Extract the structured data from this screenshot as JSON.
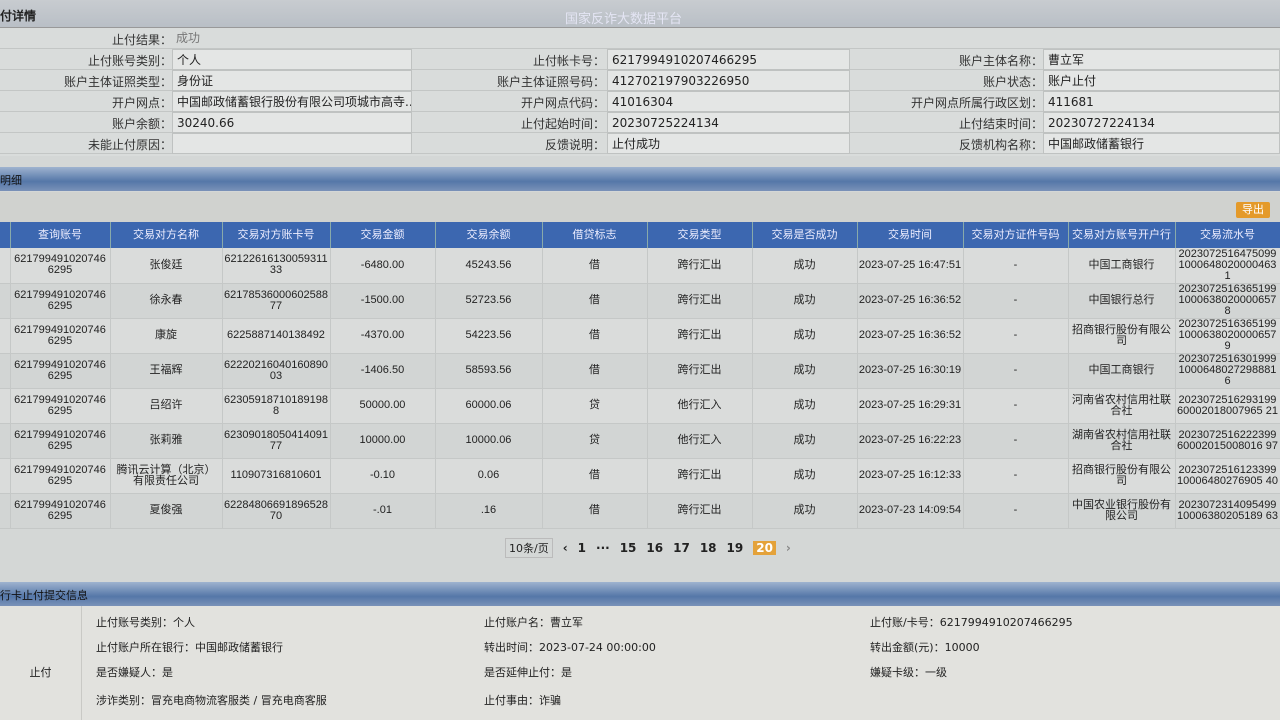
{
  "header": {
    "title": "付详情",
    "watermark": "国家反诈大数据平台"
  },
  "detail": {
    "result_label": "止付结果：",
    "result_value": "成功",
    "rows": [
      {
        "l1": "止付账号类别：",
        "v1": "个人",
        "l2": "止付帐卡号：",
        "v2": "6217994910207466295",
        "l3": "账户主体名称：",
        "v3": "曹立军"
      },
      {
        "l1": "账户主体证照类型：",
        "v1": "身份证",
        "l2": "账户主体证照号码：",
        "v2": "412702197903226950",
        "l3": "账户状态：",
        "v3": "账户止付"
      },
      {
        "l1": "开户网点：",
        "v1": "中国邮政储蓄银行股份有限公司项城市高寺...",
        "l2": "开户网点代码：",
        "v2": "41016304",
        "l3": "开户网点所属行政区划：",
        "v3": "411681"
      },
      {
        "l1": "账户余额：",
        "v1": "30240.66",
        "l2": "止付起始时间：",
        "v2": "20230725224134",
        "l3": "止付结束时间：",
        "v3": "20230727224134"
      },
      {
        "l1": "未能止付原因：",
        "v1": "",
        "l2": "反馈说明：",
        "v2": "止付成功",
        "l3": "反馈机构名称：",
        "v3": "中国邮政储蓄银行"
      }
    ]
  },
  "detail_section": {
    "title": "明细",
    "export_label": "导出"
  },
  "table": {
    "headers": [
      "",
      "查询账号",
      "交易对方名称",
      "交易对方账卡号",
      "交易金额",
      "交易余额",
      "借贷标志",
      "交易类型",
      "交易是否成功",
      "交易时间",
      "交易对方证件号码",
      "交易对方账号开户行",
      "交易流水号"
    ],
    "rows": [
      [
        "",
        "6217994910207466295",
        "张俊廷",
        "6212261613005931133",
        "-6480.00",
        "45243.56",
        "借",
        "跨行汇出",
        "成功",
        "2023-07-25 16:47:51",
        "-",
        "中国工商银行",
        "202307251647509910006480200004631"
      ],
      [
        "",
        "6217994910207466295",
        "徐永春",
        "6217853600060258877",
        "-1500.00",
        "52723.56",
        "借",
        "跨行汇出",
        "成功",
        "2023-07-25 16:36:52",
        "-",
        "中国银行总行",
        "202307251636519910006380200006578"
      ],
      [
        "",
        "6217994910207466295",
        "康旋",
        "6225887140138492",
        "-4370.00",
        "54223.56",
        "借",
        "跨行汇出",
        "成功",
        "2023-07-25 16:36:52",
        "-",
        "招商银行股份有限公司",
        "202307251636519910006380200006579"
      ],
      [
        "",
        "6217994910207466295",
        "王福辉",
        "6222021604016089003",
        "-1406.50",
        "58593.56",
        "借",
        "跨行汇出",
        "成功",
        "2023-07-25 16:30:19",
        "-",
        "中国工商银行",
        "202307251630199910006480272988816"
      ],
      [
        "",
        "6217994910207466295",
        "吕绍许",
        "623059187101891988",
        "50000.00",
        "60000.06",
        "贷",
        "他行汇入",
        "成功",
        "2023-07-25 16:29:31",
        "-",
        "河南省农村信用社联合社",
        "202307251629319960002018007965 21"
      ],
      [
        "",
        "6217994910207466295",
        "张莉雅",
        "6230901805041409177",
        "10000.00",
        "10000.06",
        "贷",
        "他行汇入",
        "成功",
        "2023-07-25 16:22:23",
        "-",
        "湖南省农村信用社联合社",
        "202307251622239960002015008016 97"
      ],
      [
        "",
        "6217994910207466295",
        "腾讯云计算（北京）有限责任公司",
        "110907316810601",
        "-0.10",
        "0.06",
        "借",
        "跨行汇出",
        "成功",
        "2023-07-25 16:12:33",
        "-",
        "招商银行股份有限公司",
        "202307251612339910006480276905 40"
      ],
      [
        "",
        "6217994910207466295",
        "夏俊强",
        "6228480669189652870",
        "-.01",
        ".16",
        "借",
        "跨行汇出",
        "成功",
        "2023-07-23 14:09:54",
        "-",
        "中国农业银行股份有限公司",
        "202307231409549910006380205189 63"
      ]
    ]
  },
  "pager": {
    "page_size": "10条/页",
    "prev": "‹",
    "pages": [
      "1",
      "···",
      "15",
      "16",
      "17",
      "18",
      "19",
      "20"
    ],
    "current": "20",
    "next": "›"
  },
  "submit": {
    "title": "行卡止付提交信息",
    "side_label": "止付",
    "items": [
      "止付账号类别：个人",
      "止付账户名：曹立军",
      "止付账/卡号：6217994910207466295",
      "止付账户所在银行：中国邮政储蓄银行",
      "转出时间：2023-07-24 00:00:00",
      "转出金额(元)：10000",
      "是否嫌疑人：是",
      "是否延伸止付：是",
      "嫌疑卡级：一级",
      "涉诈类别：冒充电商物流客服类 / 冒充电商客服",
      "止付事由：诈骗"
    ]
  }
}
